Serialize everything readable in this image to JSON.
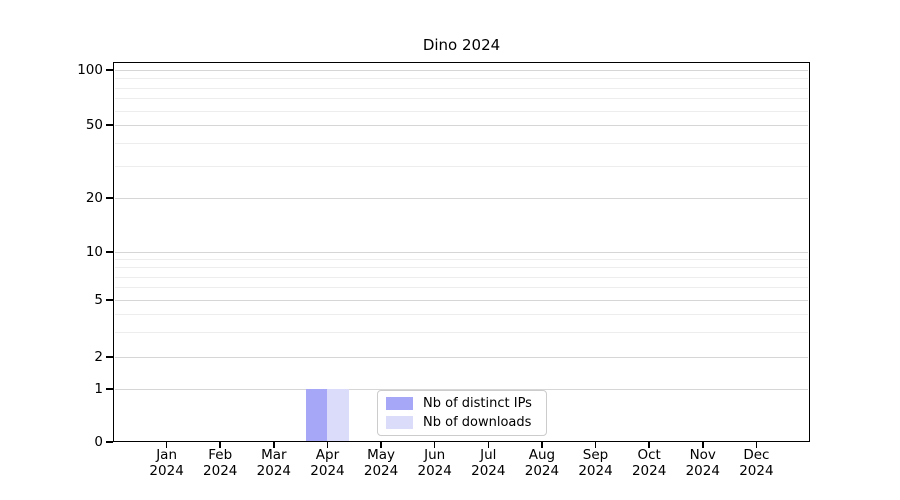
{
  "chart_data": {
    "type": "bar",
    "title": "Dino 2024",
    "x_axis": {
      "months": [
        "Jan",
        "Feb",
        "Mar",
        "Apr",
        "May",
        "Jun",
        "Jul",
        "Aug",
        "Sep",
        "Oct",
        "Nov",
        "Dec"
      ],
      "year": "2024"
    },
    "y_axis": {
      "scale": "symlog",
      "major_ticks": [
        0,
        1,
        2,
        5,
        10,
        20,
        50,
        100
      ],
      "minor_gridline_values": [
        3,
        4,
        6,
        7,
        8,
        9,
        30,
        40,
        60,
        70,
        80,
        90
      ],
      "ylim": [
        0,
        110
      ],
      "grid": "on"
    },
    "series": [
      {
        "name": "Nb of distinct IPs",
        "color": "#a7a7f8",
        "values": [
          0,
          0,
          0,
          1,
          0,
          0,
          0,
          0,
          0,
          0,
          0,
          0
        ]
      },
      {
        "name": "Nb of downloads",
        "color": "#dbdbfa",
        "values": [
          0,
          0,
          0,
          1,
          0,
          0,
          0,
          0,
          0,
          0,
          0,
          0
        ]
      }
    ],
    "legend": {
      "position": "lower center"
    },
    "colors": {
      "grid_major": "#d6d6d6",
      "grid_minor": "#ededed",
      "axis": "#000000",
      "text": "#000000"
    }
  }
}
